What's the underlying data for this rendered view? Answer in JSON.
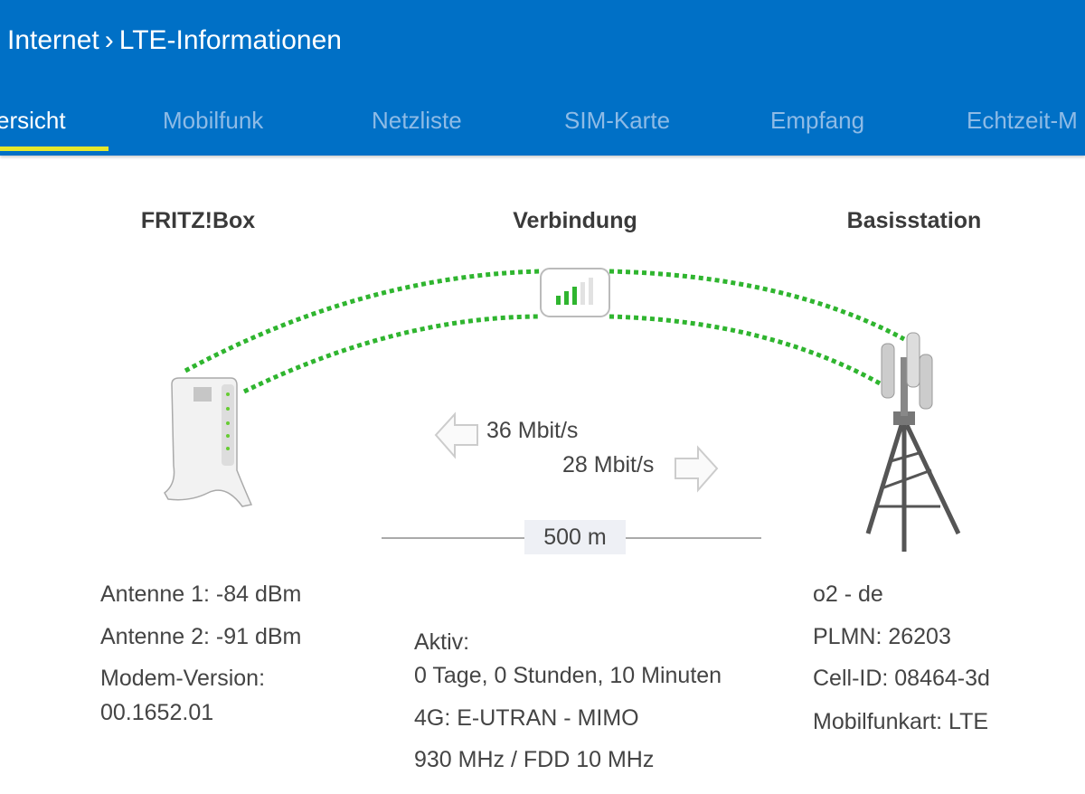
{
  "breadcrumb": {
    "parent": "Internet",
    "separator": "›",
    "current": "LTE-Informationen"
  },
  "tabs": [
    {
      "label": "ersicht",
      "active": true
    },
    {
      "label": "Mobilfunk"
    },
    {
      "label": "Netzliste"
    },
    {
      "label": "SIM-Karte"
    },
    {
      "label": "Empfang"
    },
    {
      "label": "Echtzeit-M"
    }
  ],
  "columns": {
    "fritzbox": "FRITZ!Box",
    "connection": "Verbindung",
    "station": "Basisstation"
  },
  "connection": {
    "signal_bars": 3,
    "signal_max": 5,
    "downstream": "36 Mbit/s",
    "upstream": "28 Mbit/s",
    "distance": "500 m",
    "active_label": "Aktiv:",
    "active_value": "0 Tage, 0 Stunden, 10 Minuten",
    "mode": "4G: E-UTRAN - MIMO",
    "band": "930 MHz / FDD 10 MHz"
  },
  "fritzbox": {
    "antenna1": "Antenne 1: -84 dBm",
    "antenna2": "Antenne 2: -91 dBm",
    "modem_label": "Modem-Version:",
    "modem_value": "00.1652.01"
  },
  "station": {
    "provider": "o2 - de",
    "plmn": "PLMN: 26203",
    "cell_id": "Cell-ID: 08464-3d",
    "type": "Mobilfunkart: LTE"
  },
  "colors": {
    "header": "#0070c6",
    "tab_inactive": "#8ebbe6",
    "tab_indicator": "#e5e82c",
    "signal": "#2fb52f"
  }
}
